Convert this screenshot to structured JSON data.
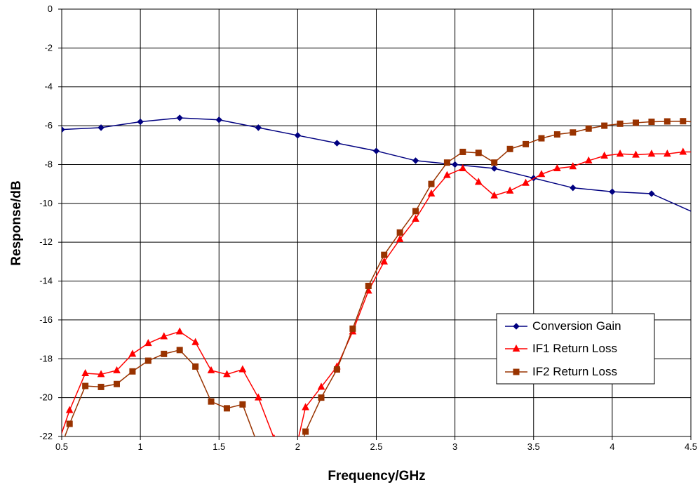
{
  "chart_data": {
    "type": "line",
    "title": "",
    "xlabel": "Frequency/GHz",
    "ylabel": "Response/dB",
    "xlim": [
      0.5,
      4.5
    ],
    "ylim": [
      -22,
      0
    ],
    "x_ticks": [
      0.5,
      1,
      1.5,
      2,
      2.5,
      3,
      3.5,
      4,
      4.5
    ],
    "x_tick_labels": [
      "0.5",
      "1",
      "1.5",
      "2",
      "2.5",
      "3",
      "3.5",
      "4",
      "4.5"
    ],
    "y_ticks": [
      0,
      -2,
      -4,
      -6,
      -8,
      -10,
      -12,
      -14,
      -16,
      -18,
      -20,
      -22
    ],
    "y_tick_labels": [
      "0",
      "-2",
      "-4",
      "-6",
      "-8",
      "-10",
      "-12",
      "-14",
      "-16",
      "-18",
      "-20",
      "-22"
    ],
    "grid": true,
    "legend_position": "lower-right",
    "series": [
      {
        "name": "Conversion Gain",
        "color": "#000080",
        "marker": "diamond",
        "points": [
          [
            0.5,
            -6.2
          ],
          [
            0.75,
            -6.1
          ],
          [
            1.0,
            -5.8
          ],
          [
            1.25,
            -5.6
          ],
          [
            1.5,
            -5.7
          ],
          [
            1.75,
            -6.1
          ],
          [
            2.0,
            -6.5
          ],
          [
            2.25,
            -6.9
          ],
          [
            2.5,
            -7.3
          ],
          [
            2.75,
            -7.8
          ],
          [
            3.0,
            -8.0
          ],
          [
            3.25,
            -8.2
          ],
          [
            3.5,
            -8.7
          ],
          [
            3.75,
            -9.2
          ],
          [
            4.0,
            -9.4
          ],
          [
            4.25,
            -9.5
          ],
          [
            4.5,
            -10.4
          ]
        ]
      },
      {
        "name": "IF1 Return Loss",
        "color": "#ff0000",
        "marker": "triangle",
        "points": [
          [
            0.45,
            -23.0
          ],
          [
            0.55,
            -20.65
          ],
          [
            0.65,
            -18.75
          ],
          [
            0.75,
            -18.8
          ],
          [
            0.85,
            -18.6
          ],
          [
            0.95,
            -17.75
          ],
          [
            1.05,
            -17.2
          ],
          [
            1.15,
            -16.85
          ],
          [
            1.25,
            -16.6
          ],
          [
            1.35,
            -17.15
          ],
          [
            1.45,
            -18.6
          ],
          [
            1.55,
            -18.8
          ],
          [
            1.65,
            -18.55
          ],
          [
            1.75,
            -20.0
          ],
          [
            1.85,
            -22.1
          ],
          [
            1.95,
            -24.0
          ],
          [
            2.05,
            -20.5
          ],
          [
            2.15,
            -19.45
          ],
          [
            2.25,
            -18.4
          ],
          [
            2.35,
            -16.6
          ],
          [
            2.45,
            -14.5
          ],
          [
            2.55,
            -13.0
          ],
          [
            2.65,
            -11.85
          ],
          [
            2.75,
            -10.8
          ],
          [
            2.85,
            -9.5
          ],
          [
            2.95,
            -8.55
          ],
          [
            3.05,
            -8.2
          ],
          [
            3.15,
            -8.9
          ],
          [
            3.25,
            -9.6
          ],
          [
            3.35,
            -9.35
          ],
          [
            3.45,
            -8.95
          ],
          [
            3.55,
            -8.5
          ],
          [
            3.65,
            -8.2
          ],
          [
            3.75,
            -8.1
          ],
          [
            3.85,
            -7.8
          ],
          [
            3.95,
            -7.55
          ],
          [
            4.05,
            -7.45
          ],
          [
            4.15,
            -7.5
          ],
          [
            4.25,
            -7.45
          ],
          [
            4.35,
            -7.45
          ],
          [
            4.45,
            -7.35
          ],
          [
            4.5,
            -7.35
          ]
        ]
      },
      {
        "name": "IF2 Return Loss",
        "color": "#993300",
        "marker": "square",
        "points": [
          [
            0.45,
            -23.5
          ],
          [
            0.55,
            -21.35
          ],
          [
            0.65,
            -19.4
          ],
          [
            0.75,
            -19.45
          ],
          [
            0.85,
            -19.3
          ],
          [
            0.95,
            -18.65
          ],
          [
            1.05,
            -18.1
          ],
          [
            1.15,
            -17.75
          ],
          [
            1.25,
            -17.55
          ],
          [
            1.35,
            -18.4
          ],
          [
            1.45,
            -20.2
          ],
          [
            1.55,
            -20.55
          ],
          [
            1.65,
            -20.35
          ],
          [
            1.75,
            -22.5
          ],
          [
            1.95,
            -24.5
          ],
          [
            2.05,
            -21.75
          ],
          [
            2.15,
            -20.0
          ],
          [
            2.25,
            -18.55
          ],
          [
            2.35,
            -16.45
          ],
          [
            2.45,
            -14.25
          ],
          [
            2.55,
            -12.65
          ],
          [
            2.65,
            -11.5
          ],
          [
            2.75,
            -10.4
          ],
          [
            2.85,
            -9.0
          ],
          [
            2.95,
            -7.9
          ],
          [
            3.05,
            -7.35
          ],
          [
            3.15,
            -7.4
          ],
          [
            3.25,
            -7.9
          ],
          [
            3.35,
            -7.2
          ],
          [
            3.45,
            -6.95
          ],
          [
            3.55,
            -6.65
          ],
          [
            3.65,
            -6.45
          ],
          [
            3.75,
            -6.35
          ],
          [
            3.85,
            -6.15
          ],
          [
            3.95,
            -6.0
          ],
          [
            4.05,
            -5.9
          ],
          [
            4.15,
            -5.85
          ],
          [
            4.25,
            -5.8
          ],
          [
            4.35,
            -5.78
          ],
          [
            4.45,
            -5.77
          ],
          [
            4.5,
            -5.8
          ]
        ]
      }
    ]
  }
}
